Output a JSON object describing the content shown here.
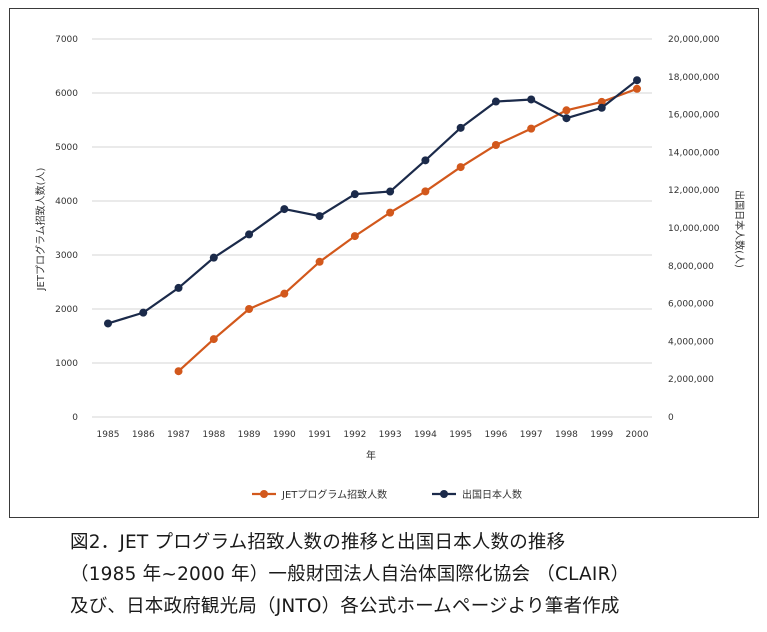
{
  "chart_data": {
    "type": "line",
    "x": [
      "1985",
      "1986",
      "1987",
      "1988",
      "1989",
      "1990",
      "1991",
      "1992",
      "1993",
      "1994",
      "1995",
      "1996",
      "1997",
      "1998",
      "1999",
      "2000"
    ],
    "xlabel": "年",
    "ylabel_left": "JETプログラム招致人数(人)",
    "ylabel_right": "出国日本人数(人)",
    "ylim_left": [
      0,
      7000
    ],
    "ylim_right": [
      0,
      20000000
    ],
    "yticks_left": [
      "7000",
      "6000",
      "5000",
      "4000",
      "3000",
      "2000",
      "1000",
      "0"
    ],
    "yticks_right": [
      "20,000,000",
      "18,000,000",
      "16,000,000",
      "14,000,000",
      "12,000,000",
      "10,000,000",
      "8,000,000",
      "6,000,000",
      "4,000,000",
      "2,000,000",
      "0"
    ],
    "grid": true,
    "legend_position": "bottom",
    "series": [
      {
        "name": "JETプログラム招致人数",
        "axis": "left",
        "color": "#d2581c",
        "values": [
          null,
          null,
          848,
          1443,
          2000,
          2284,
          2874,
          3350,
          3785,
          4178,
          4628,
          5037,
          5340,
          5680,
          5835,
          6078
        ]
      },
      {
        "name": "出国日本人数",
        "axis": "right",
        "color": "#1b2a4a",
        "values": [
          4950000,
          5520000,
          6830000,
          8430000,
          9660000,
          11000000,
          10630000,
          11790000,
          11930000,
          13580000,
          15300000,
          16690000,
          16800000,
          15810000,
          16360000,
          17820000
        ]
      }
    ]
  },
  "caption": {
    "line1": "図2．JET プログラム招致人数の推移と出国日本人数の推移",
    "line2": "（1985 年~2000 年）一般財団法人自治体国際化協会 （CLAIR）",
    "line3": "及び、日本政府観光局（JNTO）各公式ホームページより筆者作成"
  }
}
